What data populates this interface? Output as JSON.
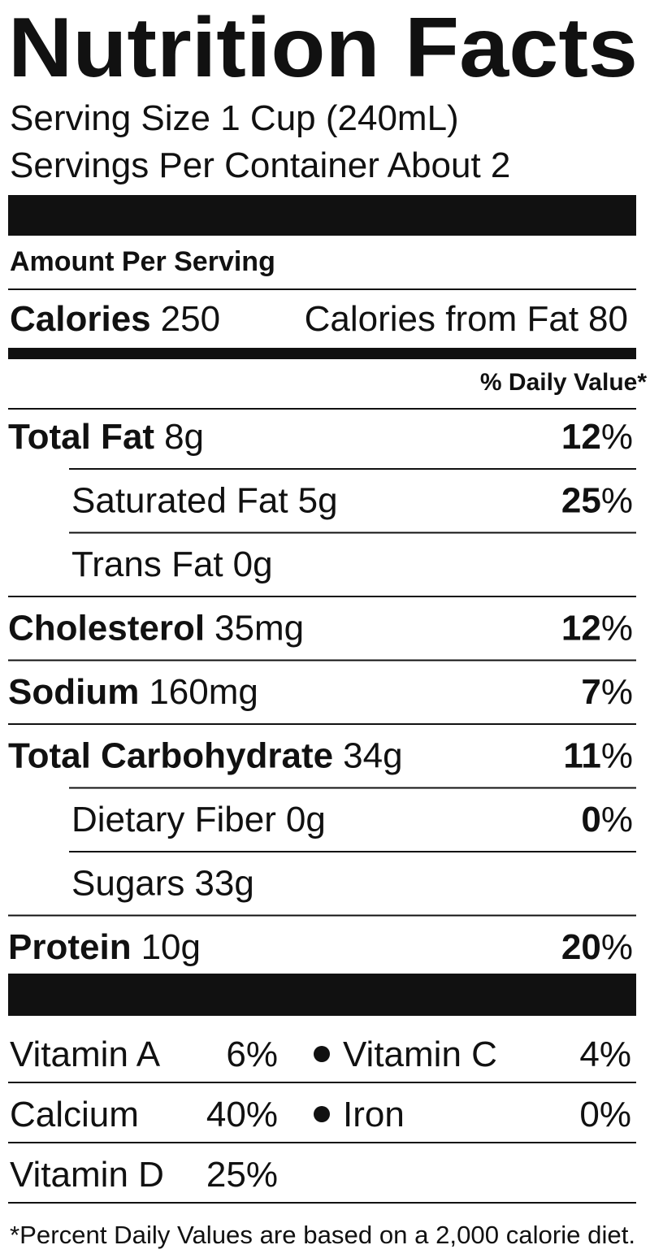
{
  "title": "Nutrition Facts",
  "serving_size": "Serving Size 1 Cup (240mL)",
  "servings_per_container": "Servings Per Container About 2",
  "amount_per_serving": "Amount Per Serving",
  "calories": {
    "label": "Calories",
    "value": "250",
    "fat_label": "Calories from Fat",
    "fat_value": "80"
  },
  "daily_value_header": "% Daily Value*",
  "nutrients": [
    {
      "name": "Total Fat",
      "amount": "8g",
      "dv": "12%",
      "indent": false
    },
    {
      "name": "Saturated Fat",
      "amount": "5g",
      "dv": "25%",
      "indent": true
    },
    {
      "name": "Trans Fat",
      "amount": "0g",
      "indent": true
    },
    {
      "name": "Cholesterol",
      "amount": "35mg",
      "dv": "12%",
      "indent": false
    },
    {
      "name": "Sodium",
      "amount": "160mg",
      "dv": "7%",
      "indent": false
    },
    {
      "name": "Total Carbohydrate",
      "amount": "34g",
      "dv": "11%",
      "indent": false
    },
    {
      "name": "Dietary Fiber",
      "amount": "0g",
      "dv": "0%",
      "indent": true
    },
    {
      "name": "Sugars",
      "amount": "33g",
      "indent": true
    },
    {
      "name": "Protein",
      "amount": "10g",
      "dv": "20%",
      "indent": false
    }
  ],
  "vitamins": [
    [
      {
        "name": "Vitamin A",
        "value": "6%"
      },
      {
        "name": "Vitamin C",
        "value": "4%"
      }
    ],
    [
      {
        "name": "Calcium",
        "value": "40%"
      },
      {
        "name": "Iron",
        "value": "0%"
      }
    ],
    [
      {
        "name": "Vitamin D",
        "value": "25%"
      }
    ]
  ],
  "footnote": "*Percent Daily Values are based on a 2,000 calorie diet."
}
